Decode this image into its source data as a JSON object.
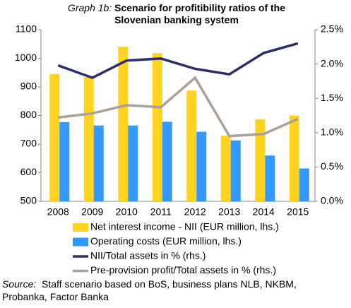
{
  "chart_data": {
    "type": "bar_line",
    "title_lead": "Graph 1b:",
    "title": "Scenario for profitibility ratios of the Slovenian banking system",
    "categories": [
      "2008",
      "2009",
      "2010",
      "2011",
      "2012",
      "2013",
      "2014",
      "2015"
    ],
    "series": [
      {
        "name": "Net interest income - NII (EUR million, lhs.)",
        "color": "#FFD320",
        "type": "bar",
        "axis": "y",
        "values": [
          945,
          935,
          1040,
          1018,
          887,
          730,
          787,
          800
        ]
      },
      {
        "name": "Operating costs (EUR million, lhs.)",
        "color": "#3399FF",
        "type": "bar",
        "axis": "y",
        "values": [
          777,
          765,
          765,
          778,
          743,
          713,
          660,
          615
        ]
      },
      {
        "name": "NII/Total assets in % (rhs.)",
        "color": "#2E2E6E",
        "type": "line",
        "axis": "y2",
        "values": [
          1.98,
          1.8,
          2.05,
          2.08,
          1.93,
          1.85,
          2.16,
          2.3
        ]
      },
      {
        "name": "Pre-provision profit/Total assets in % (rhs.)",
        "color": "#ABA09A",
        "type": "line",
        "axis": "y2",
        "values": [
          1.22,
          1.28,
          1.4,
          1.37,
          1.8,
          0.95,
          0.98,
          1.2
        ]
      }
    ],
    "ylim": [
      500,
      1100
    ],
    "yticks": [
      500,
      600,
      700,
      800,
      900,
      1000,
      1100
    ],
    "y2lim": [
      0,
      2.5
    ],
    "y2ticks": [
      {
        "value": 0,
        "label": "0.0%"
      },
      {
        "value": 0.5,
        "label": "0.5%"
      },
      {
        "value": 1,
        "label": "1.0%"
      },
      {
        "value": 1.5,
        "label": "1.5%"
      },
      {
        "value": 2,
        "label": "2.0%"
      },
      {
        "value": 2.5,
        "label": "2.5%"
      }
    ],
    "source_lead": "Source:",
    "source": "Staff scenario based on BoS, business plans NLB, NKBM, Probanka, Factor Banka"
  }
}
